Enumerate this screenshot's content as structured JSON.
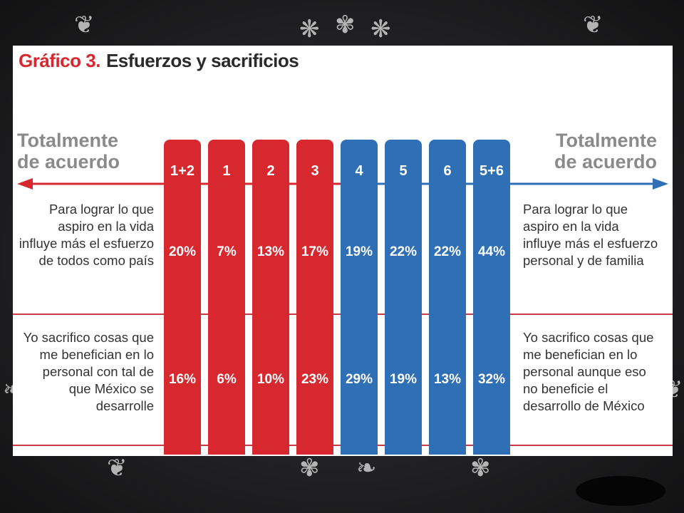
{
  "chart_data": {
    "type": "table",
    "title_number": "Gráfico 3.",
    "title_text": "Esfuerzos y sacrificios",
    "left_heading": "Totalmente de acuerdo",
    "right_heading": "Totalmente de acuerdo",
    "left_color": "#d7282f",
    "right_color": "#2f6fb5",
    "categories": [
      "1+2",
      "1",
      "2",
      "3",
      "4",
      "5",
      "6",
      "5+6"
    ],
    "category_colors": [
      "#d7282f",
      "#d7282f",
      "#d7282f",
      "#d7282f",
      "#2f6fb5",
      "#2f6fb5",
      "#2f6fb5",
      "#2f6fb5"
    ],
    "rows": [
      {
        "left_statement": "Para lograr lo que aspiro en la vida influye más el esfuerzo de todos como país",
        "right_statement": "Para lograr lo que aspiro en la vida influye más el esfuerzo personal y de familia",
        "values": [
          "20%",
          "7%",
          "13%",
          "17%",
          "19%",
          "22%",
          "22%",
          "44%"
        ]
      },
      {
        "left_statement": "Yo sacrifico cosas que me benefician en lo personal con tal de que México se desarrolle",
        "right_statement": "Yo sacrifico cosas que me benefician en lo personal aunque eso no beneficie el desarrollo de México",
        "values": [
          "16%",
          "6%",
          "10%",
          "23%",
          "29%",
          "19%",
          "13%",
          "32%"
        ]
      }
    ]
  }
}
